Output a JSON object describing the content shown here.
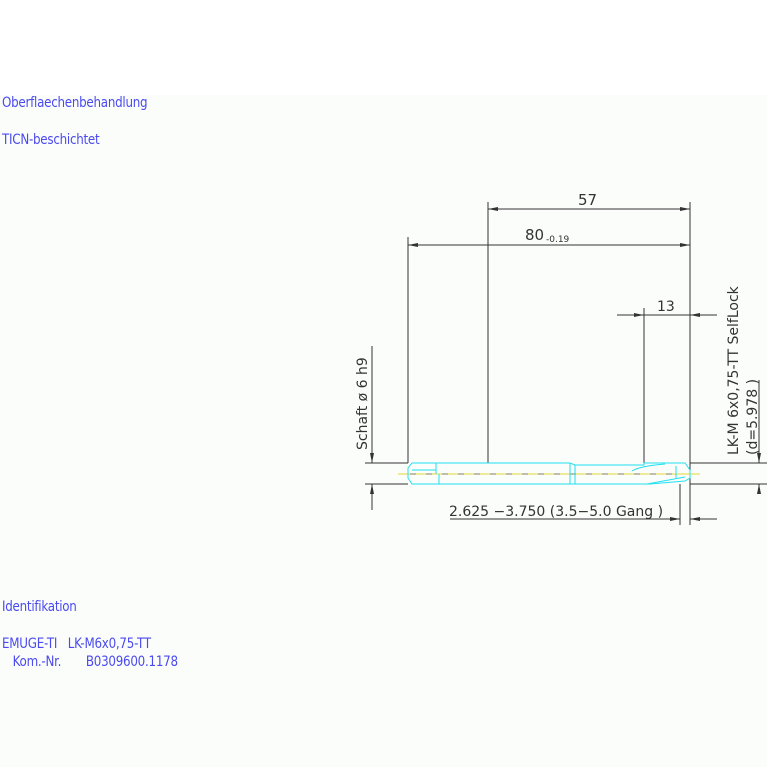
{
  "notes": {
    "surface_heading": "Oberflaechenbehandlung",
    "surface_value": "TICN-beschichtet",
    "ident_heading": "Identifikation",
    "ident_line1": "EMUGE-TI   LK-M6x0,75-TT",
    "ident_line2": "   Kom.-Nr.       B0309600.1178"
  },
  "dimensions": {
    "len_57": "57",
    "len_80": "80",
    "len_80_tol": "-0.19",
    "len_13": "13",
    "shank": "Schaft  ø 6  h9",
    "thread": "LK-M 6x0,75-TT SelfLock",
    "thread_d": "(d=5.978 )",
    "chamfer": "2.625 −3.750 (3.5−5.0 Gang  )"
  },
  "colors": {
    "text": "#4a4af0",
    "tool_outline": "#22e0f0",
    "centerline": "#e8e060",
    "dimension": "#333333"
  }
}
